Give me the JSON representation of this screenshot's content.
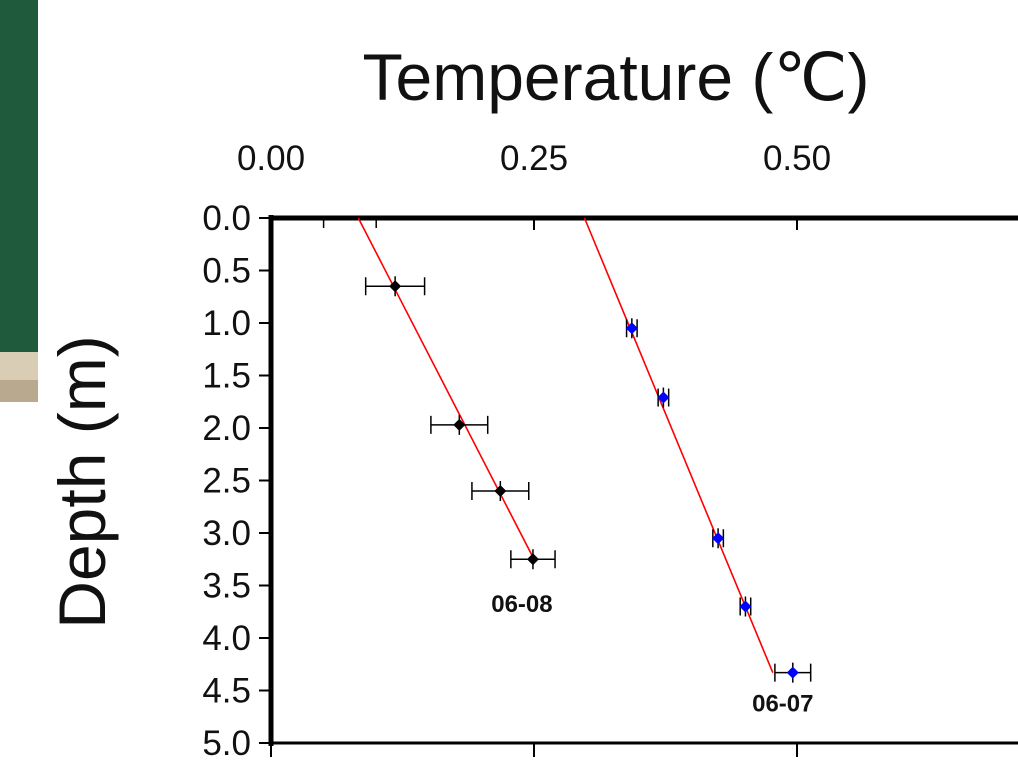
{
  "chart_data": {
    "type": "scatter",
    "title": "Temperature (℃)",
    "xlabel": "Temperature (℃)",
    "ylabel": "Depth (m)",
    "xlim": [
      0.0,
      0.69
    ],
    "ylim": [
      0.0,
      5.0
    ],
    "x_axis_position": "top",
    "y_inverted": true,
    "x_ticks": [
      "0.00",
      "0.25",
      "0.50"
    ],
    "x_tick_values": [
      0.0,
      0.25,
      0.5
    ],
    "y_ticks": [
      "0.0",
      "0.5",
      "1.0",
      "1.5",
      "2.0",
      "2.5",
      "3.0",
      "3.5",
      "4.0",
      "4.5",
      "5.0"
    ],
    "y_tick_values": [
      0.0,
      0.5,
      1.0,
      1.5,
      2.0,
      2.5,
      3.0,
      3.5,
      4.0,
      4.5,
      5.0
    ],
    "grid": false,
    "series": [
      {
        "name": "06-08",
        "color": "#000000",
        "marker": "diamond",
        "x": [
          0.118,
          0.179,
          0.218,
          0.249
        ],
        "y": [
          0.65,
          1.97,
          2.6,
          3.25
        ],
        "x_error": [
          0.028,
          0.027,
          0.027,
          0.021
        ],
        "y_error": [
          0.0,
          0.0,
          0.0,
          0.0
        ],
        "fit_line": {
          "color": "#ff0000",
          "x": [
            0.083,
            0.25
          ],
          "y": [
            0.0,
            3.25
          ]
        }
      },
      {
        "name": "06-07",
        "color": "#0000ff",
        "marker": "diamond",
        "x": [
          0.343,
          0.373,
          0.425,
          0.451,
          0.496
        ],
        "y": [
          1.05,
          1.71,
          3.05,
          3.7,
          4.33
        ],
        "x_error": [
          0.005,
          0.005,
          0.005,
          0.005,
          0.017
        ],
        "y_error": [
          0.0,
          0.0,
          0.0,
          0.0,
          0.0
        ],
        "fit_line": {
          "color": "#ff0000",
          "x": [
            0.298,
            0.477
          ],
          "y": [
            0.0,
            4.33
          ]
        }
      }
    ],
    "annotations": [
      {
        "text": "06-08",
        "x": 0.21,
        "y": 3.75
      },
      {
        "text": "06-07",
        "x": 0.458,
        "y": 4.7
      }
    ]
  },
  "background": {
    "description_colors": {
      "chalkboard": "#1f5a3d",
      "ledge": "#cdbfa6"
    }
  }
}
